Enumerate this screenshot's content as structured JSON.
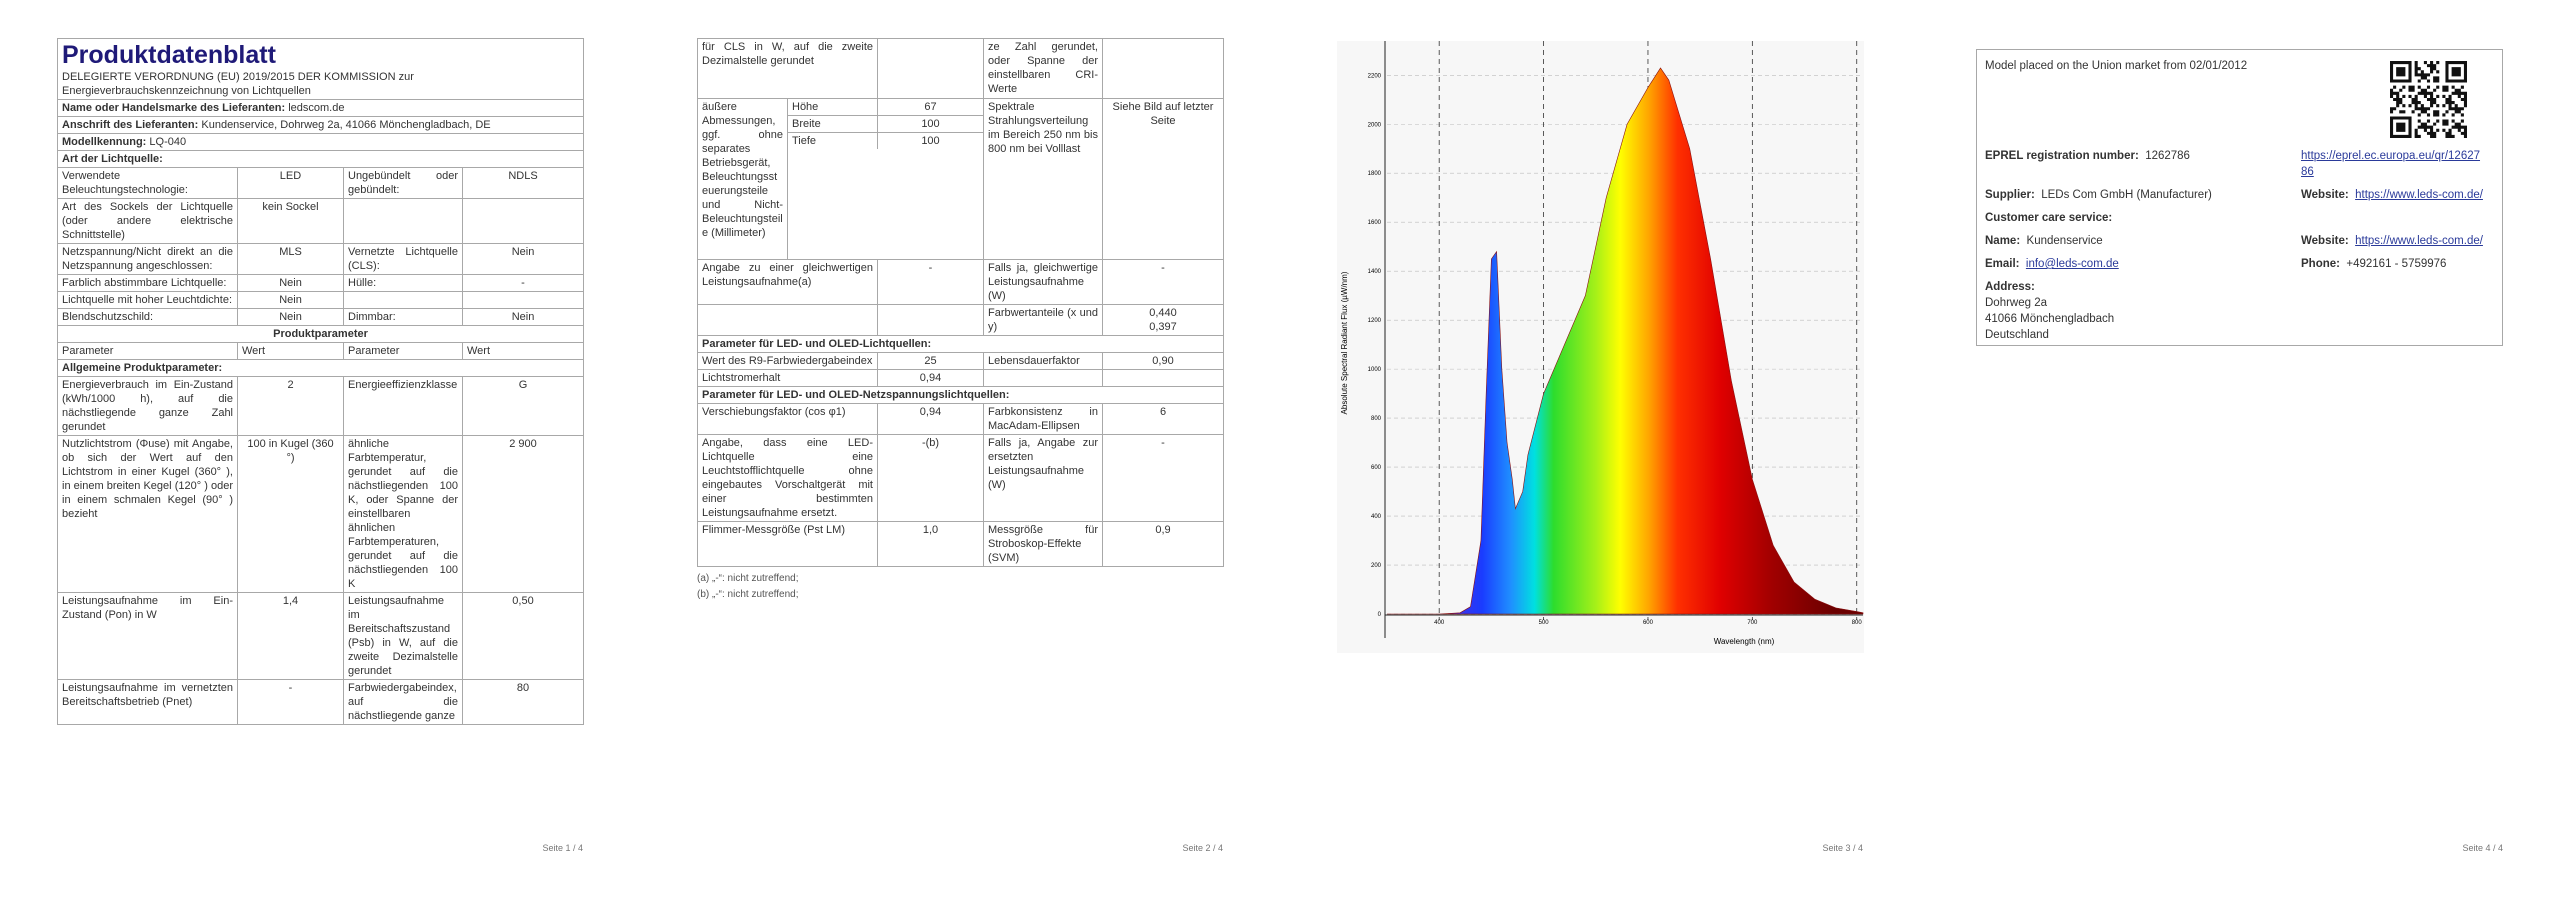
{
  "pages": [
    {
      "title": "Produktdatenblatt",
      "regulation": "DELEGIERTE VERORDNUNG (EU) 2019/2015 DER KOMMISSION zur Energieverbrauchskennzeichnung von Lichtquellen",
      "supplier": {
        "label": "Name oder Handelsmarke des Lieferanten:",
        "value": "ledscom.de"
      },
      "address": {
        "label": "Anschrift des Lieferanten:",
        "value": "Kundenservice, Dohrweg 2a, 41066 Mönchengladbach, DE"
      },
      "model": {
        "label": "Modellkennung:",
        "value": "LQ-040"
      },
      "light_source_heading": "Art der Lichtquelle:",
      "light_source_rows": [
        [
          "Verwendete Beleuchtungstechnologie:",
          "LED",
          "Ungebündelt oder gebündelt:",
          "NDLS"
        ],
        [
          "Art des Sockels der Lichtquelle (oder andere elektrische Schnittstelle)",
          "kein Sockel"
        ],
        [
          "Netzspannung/Nicht direkt an die Netzspannung angeschlossen:",
          "MLS",
          "Vernetzte Lichtquelle (CLS):",
          "Nein"
        ],
        [
          "Farblich abstimmbare Lichtquelle:",
          "Nein",
          "Hülle:",
          "-"
        ],
        [
          "Lichtquelle mit hoher Leuchtdichte:",
          "Nein"
        ],
        [
          "Blendschutzschild:",
          "Nein",
          "Dimmbar:",
          "Nein"
        ]
      ],
      "parameters_heading": "Produktparameter",
      "column_headers": [
        "Parameter",
        "Wert",
        "Parameter",
        "Wert"
      ],
      "general_heading": "Allgemeine Produktparameter:",
      "general_rows": [
        [
          "Energieverbrauch im Ein-Zustand (kWh/1000 h), auf die nächstliegende ganze Zahl gerundet",
          "2",
          "Energieeffizienzklasse",
          "G"
        ],
        [
          "Nutzlichtstrom (Φuse) mit Angabe, ob sich der Wert auf den Lichtstrom in einer Kugel (360° ), in einem breiten Kegel (120° ) oder in einem schmalen Kegel (90° ) bezieht",
          "100 in Kugel (360 °)",
          "ähnliche Farbtemperatur, gerundet auf die nächstliegenden 100 K, oder Spanne der einstellbaren ähnlichen Farbtemperaturen, gerundet auf die nächstliegenden 100 K",
          "2 900"
        ],
        [
          "Leistungsaufnahme im Ein-Zustand (Pon) in W",
          "1,4",
          "Leistungsaufnahme im Bereitschaftszustand (Psb) in W, auf die zweite Dezimalstelle gerundet",
          "0,50"
        ],
        [
          "Leistungsaufnahme im vernetzten Bereitschaftsbetrieb (Pnet)",
          "-",
          "Farbwiedergabeindex, auf die nächstliegende ganze",
          "80"
        ]
      ],
      "footer": "Seite 1 / 4"
    },
    {
      "continued_row": [
        "für CLS in W, auf die zweite Dezimalstelle gerundet",
        "ze Zahl gerundet, oder Spanne der einstellbaren CRI-Werte"
      ],
      "dimensions": {
        "label": "äußere Abmessungen, ggf. ohne separates Betriebsgerät, Beleuchtungssteuerungsteile und Nicht-Beleuchtungsteile (Millimeter)",
        "items": [
          [
            "Höhe",
            "67"
          ],
          [
            "Breite",
            "100"
          ],
          [
            "Tiefe",
            "100"
          ]
        ]
      },
      "spectrum": [
        "Spektrale Strahlungsverteilung im Bereich 250 nm bis 800 nm bei Volllast",
        "Siehe Bild auf letzter Seite"
      ],
      "equivalent_row": [
        [
          "Angabe zu einer gleichwertigen Leistungsaufnahme(a)",
          "-",
          "Falls ja, gleichwertige Leistungsaufnahme (W)",
          "-"
        ]
      ],
      "chromaticity": [
        "Farbwertanteile (x und y)",
        "0,440",
        "0,397"
      ],
      "led_heading": "Parameter für LED- und OLED-Lichtquellen:",
      "led_rows": [
        [
          "Wert des R9-Farbwiedergabeindex",
          "25",
          "Lebensdauerfaktor",
          "0,90"
        ],
        [
          "Lichtstromerhalt",
          "0,94"
        ]
      ],
      "mains_heading": "Parameter für LED- und OLED-Netzspannungslichtquellen:",
      "mains_rows": [
        [
          "Verschiebungsfaktor (cos φ1)",
          "0,94",
          "Farbkonsistenz in MacAdam-Ellipsen",
          "6"
        ],
        [
          "Angabe, dass eine LED-Lichtquelle eine Leuchtstofflichtquelle ohne eingebautes Vorschaltgerät mit einer bestimmten Leistungsaufnahme ersetzt.",
          "-(b)",
          "Falls ja, Angabe zur ersetzten Leistungsaufnahme (W)",
          "-"
        ],
        [
          "Flimmer-Messgröße (Pst LM)",
          "1,0",
          "Messgröße für Stroboskop-Effekte (SVM)",
          "0,9"
        ]
      ],
      "notes": [
        "(a) „-“: nicht zutreffend;",
        "(b) „-“: nicht zutreffend;"
      ],
      "footer": "Seite 2 / 4"
    },
    {
      "footer": "Seite 3 / 4"
    },
    {
      "market": "Model placed on the Union market from 02/01/2012",
      "eprel": {
        "label": "EPREL registration number:",
        "value": "1262786",
        "link": "https://eprel.ec.europa.eu/qr/1262786"
      },
      "supplier": {
        "label": "Supplier:",
        "value": "LEDs Com GmbH (Manufacturer)",
        "website_label": "Website:",
        "website": "https://www.leds-com.de/"
      },
      "customer_care": "Customer care service:",
      "name": {
        "label": "Name:",
        "value": "Kundenservice",
        "website_label": "Website:",
        "website": "https://www.leds-com.de/"
      },
      "email": {
        "label": "Email:",
        "value": "info@leds-com.de",
        "phone_label": "Phone:",
        "phone": "+492161 - 5759976"
      },
      "address": {
        "label": "Address:",
        "lines": [
          "Dohrweg 2a",
          "41066 Mönchengladbach",
          "Deutschland"
        ]
      },
      "footer": "Seite 4 / 4"
    }
  ],
  "chart_data": {
    "type": "area",
    "x_label": "Wavelength (nm)",
    "y_label": "Absolute Spectral Radiant Flux (µW/nm)",
    "x": [
      350,
      400,
      420,
      430,
      440,
      445,
      450,
      455,
      460,
      465,
      470,
      473,
      480,
      485,
      500,
      520,
      540,
      560,
      580,
      600,
      612,
      620,
      640,
      660,
      680,
      700,
      720,
      740,
      760,
      780,
      800,
      806
    ],
    "values": [
      0,
      0,
      5,
      30,
      300,
      900,
      1450,
      1480,
      1000,
      700,
      550,
      430,
      500,
      650,
      900,
      1100,
      1300,
      1700,
      2000,
      2150,
      2230,
      2180,
      1900,
      1450,
      950,
      550,
      280,
      130,
      60,
      25,
      10,
      5
    ],
    "xlim": [
      350,
      806
    ],
    "ylim": [
      0,
      2340
    ],
    "xticks": [
      400,
      500,
      600,
      700,
      800
    ],
    "yticks": [
      0,
      200,
      400,
      600,
      800,
      1000,
      1200,
      1400,
      1600,
      1800,
      2000,
      2200
    ],
    "grid": true
  }
}
